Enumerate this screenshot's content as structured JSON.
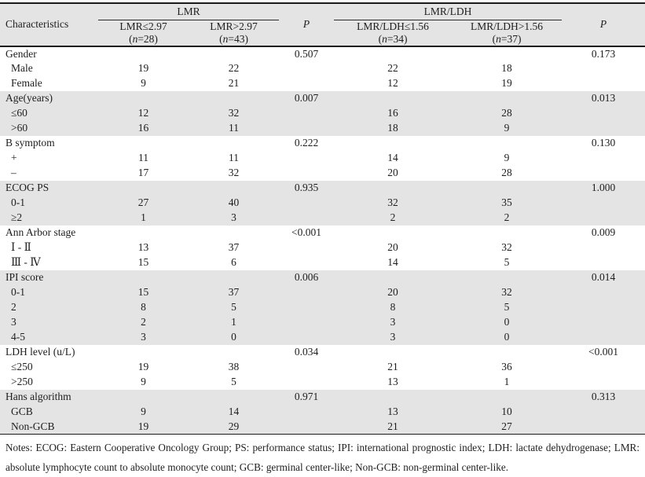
{
  "header": {
    "characteristics": "Characteristics",
    "lmr": "LMR",
    "lmr_ldh": "LMR/LDH",
    "p": "P",
    "sub": {
      "lmr_low": "LMR≤2.97",
      "lmr_low_n": "(<i>n</i>=28)",
      "lmr_high": "LMR>2.97",
      "lmr_high_n": "(<i>n</i>=43)",
      "ldh_low": "LMR/LDH≤1.56",
      "ldh_low_n": "(<i>n</i>=34)",
      "ldh_high": "LMR/LDH>1.56",
      "ldh_high_n": "(<i>n</i>=37)"
    }
  },
  "table": {
    "groups": [
      {
        "label": "Gender",
        "p1": "0.507",
        "p2": "0.173",
        "rows": [
          {
            "label": "Male",
            "values": [
              "19",
              "22",
              "22",
              "18"
            ]
          },
          {
            "label": "Female",
            "values": [
              "9",
              "21",
              "12",
              "19"
            ]
          }
        ]
      },
      {
        "label": "Age(years)",
        "p1": "0.007",
        "p2": "0.013",
        "rows": [
          {
            "label": "≤60",
            "values": [
              "12",
              "32",
              "16",
              "28"
            ]
          },
          {
            "label": ">60",
            "values": [
              "16",
              "11",
              "18",
              "9"
            ]
          }
        ]
      },
      {
        "label": "B symptom",
        "p1": "0.222",
        "p2": "0.130",
        "rows": [
          {
            "label": "+",
            "values": [
              "11",
              "11",
              "14",
              "9"
            ]
          },
          {
            "label": "–",
            "values": [
              "17",
              "32",
              "20",
              "28"
            ]
          }
        ]
      },
      {
        "label": "ECOG PS",
        "p1": "0.935",
        "p2": "1.000",
        "rows": [
          {
            "label": "0-1",
            "values": [
              "27",
              "40",
              "32",
              "35"
            ]
          },
          {
            "label": "≥2",
            "values": [
              "1",
              "3",
              "2",
              "2"
            ]
          }
        ]
      },
      {
        "label": "Ann Arbor stage",
        "p1": "<0.001",
        "p2": "0.009",
        "rows": [
          {
            "label": "Ⅰ - Ⅱ",
            "values": [
              "13",
              "37",
              "20",
              "32"
            ]
          },
          {
            "label": "Ⅲ - Ⅳ",
            "values": [
              "15",
              "6",
              "14",
              "5"
            ]
          }
        ]
      },
      {
        "label": "IPI score",
        "p1": "0.006",
        "p2": "0.014",
        "rows": [
          {
            "label": "0-1",
            "values": [
              "15",
              "37",
              "20",
              "32"
            ]
          },
          {
            "label": "2",
            "values": [
              "8",
              "5",
              "8",
              "5"
            ]
          },
          {
            "label": "3",
            "values": [
              "2",
              "1",
              "3",
              "0"
            ]
          },
          {
            "label": "4-5",
            "values": [
              "3",
              "0",
              "3",
              "0"
            ]
          }
        ]
      },
      {
        "label": "LDH level (u/L)",
        "p1": "0.034",
        "p2": "<0.001",
        "rows": [
          {
            "label": "≤250",
            "values": [
              "19",
              "38",
              "21",
              "36"
            ]
          },
          {
            "label": ">250",
            "values": [
              "9",
              "5",
              "13",
              "1"
            ]
          }
        ]
      },
      {
        "label": "Hans algorithm",
        "p1": "0.971",
        "p2": "0.313",
        "rows": [
          {
            "label": "GCB",
            "values": [
              "9",
              "14",
              "13",
              "10"
            ]
          },
          {
            "label": "Non-GCB",
            "values": [
              "19",
              "29",
              "21",
              "27"
            ]
          }
        ]
      }
    ]
  },
  "notes": "Notes: ECOG: Eastern Cooperative Oncology Group; PS: performance status; IPI: international prognostic index; LDH: lactate dehydrogenase; LMR: absolute lymphocyte count to absolute monocyte count; GCB: germinal center-like; Non-GCB: non-germinal center-like."
}
